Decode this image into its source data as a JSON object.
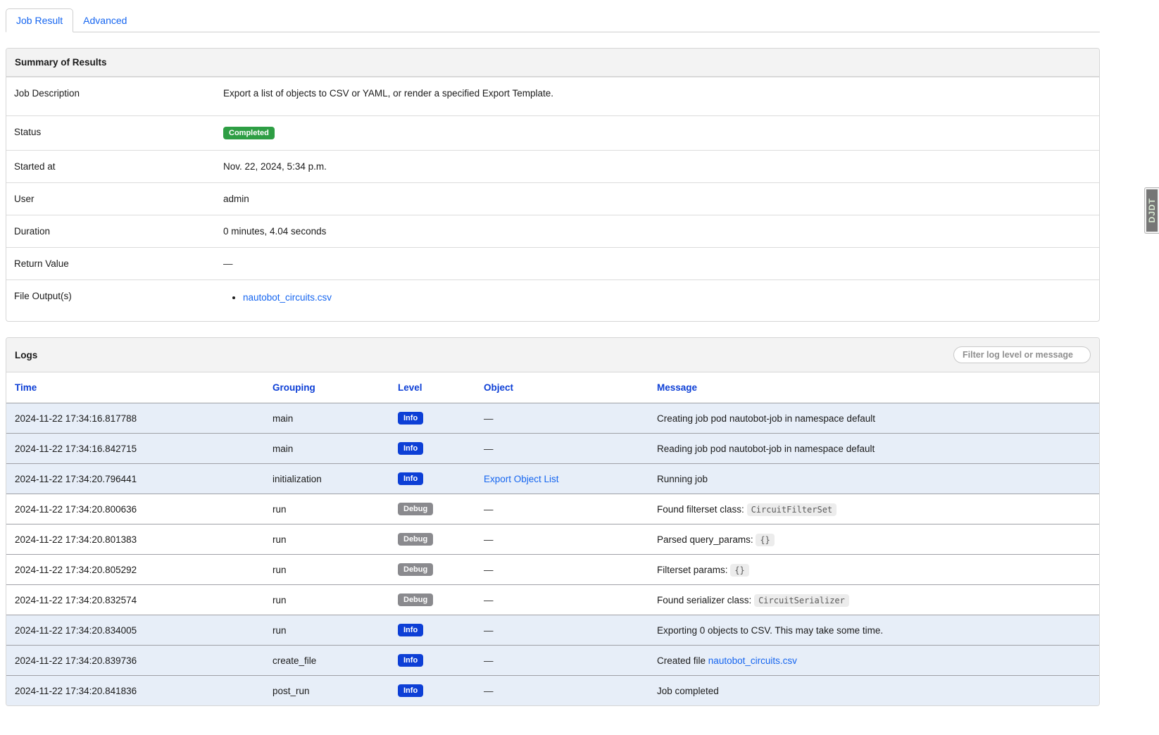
{
  "tabs": {
    "job_result": "Job Result",
    "advanced": "Advanced"
  },
  "summary": {
    "title": "Summary of Results",
    "job_description": {
      "label": "Job Description",
      "value": "Export a list of objects to CSV or YAML, or render a specified Export Template."
    },
    "status": {
      "label": "Status",
      "value": "Completed"
    },
    "started_at": {
      "label": "Started at",
      "value": "Nov. 22, 2024, 5:34 p.m."
    },
    "user": {
      "label": "User",
      "value": "admin"
    },
    "duration": {
      "label": "Duration",
      "value": "0 minutes, 4.04 seconds"
    },
    "return_value": {
      "label": "Return Value",
      "value": "—"
    },
    "file_outputs": {
      "label": "File Output(s)",
      "files": [
        "nautobot_circuits.csv"
      ]
    }
  },
  "djdt": {
    "label": "DJDT"
  },
  "logs": {
    "title": "Logs",
    "filter_placeholder": "Filter log level or message",
    "columns": [
      {
        "label": "Time"
      },
      {
        "label": "Grouping"
      },
      {
        "label": "Level"
      },
      {
        "label": "Object"
      },
      {
        "label": "Message"
      }
    ],
    "rows": [
      {
        "time": "2024-11-22 17:34:16.817788",
        "grouping": "main",
        "level": "info",
        "level_label": "Info",
        "object_dash": "—",
        "message_text": "Creating job pod nautobot-job in namespace default"
      },
      {
        "time": "2024-11-22 17:34:16.842715",
        "grouping": "main",
        "level": "info",
        "level_label": "Info",
        "object_dash": "—",
        "message_text": "Reading job pod nautobot-job in namespace default"
      },
      {
        "time": "2024-11-22 17:34:20.796441",
        "grouping": "initialization",
        "level": "info",
        "level_label": "Info",
        "object_link": "Export Object List",
        "message_text": "Running job"
      },
      {
        "time": "2024-11-22 17:34:20.800636",
        "grouping": "run",
        "level": "debug",
        "level_label": "Debug",
        "object_dash": "—",
        "message_text": "Found filterset class: ",
        "message_code": "CircuitFilterSet"
      },
      {
        "time": "2024-11-22 17:34:20.801383",
        "grouping": "run",
        "level": "debug",
        "level_label": "Debug",
        "object_dash": "—",
        "message_text": "Parsed query_params: ",
        "message_code": "{}"
      },
      {
        "time": "2024-11-22 17:34:20.805292",
        "grouping": "run",
        "level": "debug",
        "level_label": "Debug",
        "object_dash": "—",
        "message_text": "Filterset params: ",
        "message_code": "{}"
      },
      {
        "time": "2024-11-22 17:34:20.832574",
        "grouping": "run",
        "level": "debug",
        "level_label": "Debug",
        "object_dash": "—",
        "message_text": "Found serializer class: ",
        "message_code": "CircuitSerializer"
      },
      {
        "time": "2024-11-22 17:34:20.834005",
        "grouping": "run",
        "level": "info",
        "level_label": "Info",
        "object_dash": "—",
        "message_text": "Exporting 0 objects to CSV. This may take some time."
      },
      {
        "time": "2024-11-22 17:34:20.839736",
        "grouping": "create_file",
        "level": "info",
        "level_label": "Info",
        "object_dash": "—",
        "message_text": "Created file ",
        "message_link": "nautobot_circuits.csv"
      },
      {
        "time": "2024-11-22 17:34:20.841836",
        "grouping": "post_run",
        "level": "info",
        "level_label": "Info",
        "object_dash": "—",
        "message_text": "Job completed"
      }
    ]
  },
  "colors": {
    "success_green": "#2e9e44",
    "info_badge_blue": "#0d3fd6",
    "debug_badge_gray": "#8a8a8e",
    "link_blue": "#1565f0",
    "info_row_bg": "#e7eef8",
    "panel_heading_bg": "#f3f3f3"
  }
}
